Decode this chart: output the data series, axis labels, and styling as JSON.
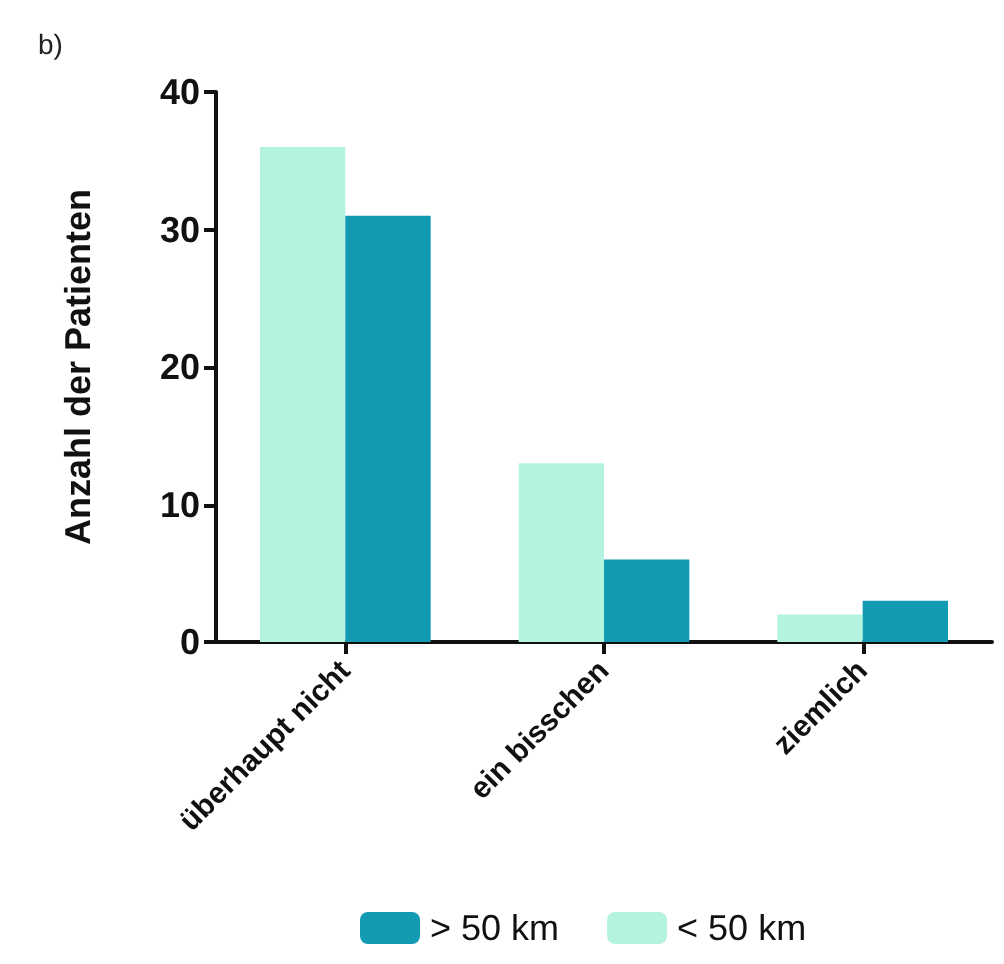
{
  "chart_data": {
    "type": "bar",
    "title": "b)",
    "ylabel": "Anzahl der Patienten",
    "categories": [
      "überhaupt nicht",
      "ein bisschen",
      "ziemlich"
    ],
    "series": [
      {
        "name": "< 50 km",
        "color": "#b3f3df",
        "values": [
          36,
          13,
          2
        ]
      },
      {
        "name": "> 50 km",
        "color": "#129ab3",
        "values": [
          31,
          6,
          3
        ]
      }
    ],
    "ylim": [
      0,
      40
    ],
    "yticks": [
      0,
      10,
      20,
      30,
      40
    ],
    "grid": false,
    "legend": "bottom"
  }
}
